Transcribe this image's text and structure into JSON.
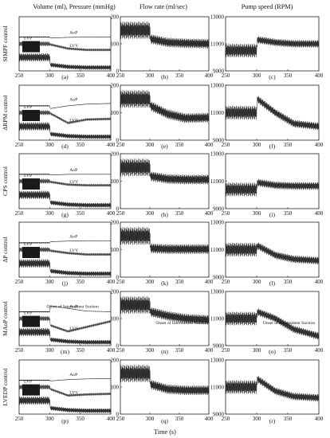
{
  "figure": {
    "column_titles": [
      "Volume (ml), Pressure (mmHg)",
      "Flow rate (ml/sec)",
      "Pump speed (RPM)"
    ],
    "row_titles": [
      "SIMPF control",
      "ΔRPM control",
      "CPS control",
      "ΔP control",
      "MAoP control",
      "LVEDP control"
    ],
    "xlabel": "Time (s)",
    "panel_labels": [
      "(a)",
      "(b)",
      "(c)",
      "(d)",
      "(e)",
      "(f)",
      "(g)",
      "(h)",
      "(i)",
      "(j)",
      "(k)",
      "(l)",
      "(m)",
      "(n)",
      "(o)",
      "(p)",
      "(q)",
      "(r)"
    ]
  },
  "chart_data": [
    {
      "type": "line",
      "panel": "(a)",
      "row": "SIMPF control",
      "x": [
        250,
        300,
        301,
        330,
        360,
        400
      ],
      "series": [
        {
          "name": "AoP",
          "values": [
            100,
            100,
            97,
            99,
            100,
            100
          ]
        },
        {
          "name": "LVV",
          "values": [
            80,
            80,
            78,
            66,
            62,
            62
          ]
        },
        {
          "name": "LVP",
          "values": [
            40,
            40,
            18,
            12,
            10,
            10
          ]
        }
      ],
      "xlim": [
        250,
        400
      ],
      "ylim": [
        0,
        160
      ],
      "annotations": [
        "AoP",
        "LVV",
        "LVP"
      ]
    },
    {
      "type": "line",
      "panel": "(b)",
      "row": "SIMPF control",
      "x": [
        250,
        300,
        301,
        330,
        360,
        400
      ],
      "series": [
        {
          "values": [
            150,
            150,
            118,
            105,
            102,
            100
          ]
        }
      ],
      "xlim": [
        250,
        400
      ],
      "ylim": [
        0,
        200
      ],
      "yticks": [
        0,
        100,
        200
      ]
    },
    {
      "type": "line",
      "panel": "(c)",
      "row": "SIMPF control",
      "x": [
        250,
        300,
        301,
        330,
        360,
        400
      ],
      "series": [
        {
          "values": [
            10500,
            10500,
            11300,
            11100,
            11000,
            11000
          ]
        }
      ],
      "xlim": [
        250,
        400
      ],
      "ylim": [
        9000,
        13000
      ],
      "yticks": [
        9000,
        11000,
        13000
      ]
    },
    {
      "type": "line",
      "panel": "(d)",
      "row": "ΔRPM control",
      "x": [
        250,
        300,
        301,
        330,
        360,
        400
      ],
      "series": [
        {
          "name": "AoP",
          "values": [
            100,
            100,
            92,
            100,
            105,
            107
          ]
        },
        {
          "name": "LVV",
          "values": [
            80,
            80,
            78,
            50,
            60,
            62
          ]
        },
        {
          "name": "LVP",
          "values": [
            40,
            40,
            18,
            12,
            10,
            10
          ]
        }
      ],
      "xlim": [
        250,
        400
      ],
      "ylim": [
        0,
        160
      ],
      "annotations": [
        "AoP",
        "LVV",
        "LVP"
      ]
    },
    {
      "type": "line",
      "panel": "(e)",
      "row": "ΔRPM control",
      "x": [
        250,
        300,
        301,
        330,
        360,
        400
      ],
      "series": [
        {
          "values": [
            150,
            150,
            125,
            95,
            80,
            82
          ]
        }
      ],
      "xlim": [
        250,
        400
      ],
      "ylim": [
        0,
        200
      ],
      "yticks": [
        0,
        100,
        200
      ]
    },
    {
      "type": "line",
      "panel": "(f)",
      "row": "ΔRPM control",
      "x": [
        250,
        300,
        301,
        330,
        360,
        400
      ],
      "series": [
        {
          "values": [
            11000,
            11000,
            12000,
            11000,
            10200,
            10000
          ]
        }
      ],
      "xlim": [
        250,
        400
      ],
      "ylim": [
        9000,
        13000
      ],
      "yticks": [
        9000,
        11000,
        13000
      ]
    },
    {
      "type": "line",
      "panel": "(g)",
      "row": "CPS control",
      "x": [
        250,
        300,
        301,
        330,
        360,
        400
      ],
      "series": [
        {
          "name": "AoP",
          "values": [
            100,
            100,
            98,
            100,
            100,
            100
          ]
        },
        {
          "name": "LVV",
          "values": [
            80,
            80,
            78,
            70,
            68,
            68
          ]
        },
        {
          "name": "LVP",
          "values": [
            40,
            40,
            18,
            12,
            10,
            10
          ]
        }
      ],
      "xlim": [
        250,
        400
      ],
      "ylim": [
        0,
        160
      ],
      "annotations": [
        "AoP",
        "LVV",
        "LVP"
      ]
    },
    {
      "type": "line",
      "panel": "(h)",
      "row": "CPS control",
      "x": [
        250,
        300,
        301,
        330,
        360,
        400
      ],
      "series": [
        {
          "values": [
            150,
            150,
            118,
            108,
            106,
            106
          ]
        }
      ],
      "xlim": [
        250,
        400
      ],
      "ylim": [
        0,
        200
      ],
      "yticks": [
        0,
        100,
        200
      ]
    },
    {
      "type": "line",
      "panel": "(i)",
      "row": "CPS control",
      "x": [
        250,
        300,
        301,
        330,
        360,
        400
      ],
      "series": [
        {
          "values": [
            10400,
            10400,
            10900,
            10700,
            10650,
            10650
          ]
        }
      ],
      "xlim": [
        250,
        400
      ],
      "ylim": [
        9000,
        13000
      ],
      "yticks": [
        9000,
        11000,
        13000
      ]
    },
    {
      "type": "line",
      "panel": "(j)",
      "row": "ΔP control",
      "x": [
        250,
        300,
        301,
        330,
        360,
        400
      ],
      "series": [
        {
          "name": "AoP",
          "values": [
            100,
            100,
            103,
            105,
            106,
            106
          ]
        },
        {
          "name": "LVV",
          "values": [
            80,
            80,
            77,
            70,
            66,
            66
          ]
        },
        {
          "name": "LVP",
          "values": [
            40,
            40,
            18,
            12,
            10,
            10
          ]
        }
      ],
      "xlim": [
        250,
        400
      ],
      "ylim": [
        0,
        160
      ],
      "annotations": [
        "AoP",
        "LVV",
        "LVP"
      ]
    },
    {
      "type": "line",
      "panel": "(k)",
      "row": "ΔP control",
      "x": [
        250,
        300,
        301,
        330,
        360,
        400
      ],
      "series": [
        {
          "values": [
            150,
            150,
            105,
            102,
            102,
            102
          ]
        }
      ],
      "xlim": [
        250,
        400
      ],
      "ylim": [
        0,
        200
      ],
      "yticks": [
        0,
        100,
        200
      ]
    },
    {
      "type": "line",
      "panel": "(l)",
      "row": "ΔP control",
      "x": [
        250,
        300,
        301,
        330,
        360,
        400
      ],
      "series": [
        {
          "values": [
            11000,
            11000,
            11300,
            10600,
            10300,
            10200
          ]
        }
      ],
      "xlim": [
        250,
        400
      ],
      "ylim": [
        9000,
        13000
      ],
      "yticks": [
        9000,
        11000,
        13000
      ]
    },
    {
      "type": "line",
      "panel": "(m)",
      "row": "MAoP control",
      "x": [
        250,
        300,
        301,
        330,
        360,
        400
      ],
      "series": [
        {
          "name": "AoP",
          "values": [
            100,
            100,
            118,
            110,
            102,
            100
          ]
        },
        {
          "name": "LVV",
          "values": [
            80,
            80,
            60,
            42,
            55,
            72
          ]
        },
        {
          "name": "LVP",
          "values": [
            40,
            40,
            18,
            12,
            10,
            10
          ]
        }
      ],
      "xlim": [
        250,
        400
      ],
      "ylim": [
        0,
        160
      ],
      "annotations": [
        "AoP",
        "LVP",
        "LVV",
        "Onset of Intermittent Suction"
      ]
    },
    {
      "type": "line",
      "panel": "(n)",
      "row": "MAoP control",
      "x": [
        250,
        300,
        301,
        330,
        360,
        400
      ],
      "series": [
        {
          "values": [
            150,
            150,
            125,
            110,
            100,
            95
          ]
        }
      ],
      "xlim": [
        250,
        400
      ],
      "ylim": [
        0,
        200
      ],
      "yticks": [
        0,
        100,
        200
      ],
      "annotations": [
        "Onset of Intermittent Suction"
      ]
    },
    {
      "type": "line",
      "panel": "(o)",
      "row": "MAoP control",
      "x": [
        250,
        300,
        301,
        330,
        360,
        400
      ],
      "series": [
        {
          "values": [
            11000,
            11000,
            11500,
            11000,
            10200,
            9700
          ]
        }
      ],
      "xlim": [
        250,
        400
      ],
      "ylim": [
        9000,
        13000
      ],
      "yticks": [
        9000,
        11000,
        13000
      ],
      "annotations": [
        "Onset of Intermittent Suction"
      ]
    },
    {
      "type": "line",
      "panel": "(p)",
      "row": "LVEDP control",
      "x": [
        250,
        300,
        301,
        330,
        360,
        400
      ],
      "series": [
        {
          "name": "AoP",
          "values": [
            100,
            100,
            98,
            102,
            104,
            105
          ]
        },
        {
          "name": "LVV",
          "values": [
            80,
            80,
            74,
            55,
            58,
            60
          ]
        },
        {
          "name": "LVP",
          "values": [
            40,
            40,
            18,
            12,
            10,
            10
          ]
        }
      ],
      "xlim": [
        250,
        400
      ],
      "ylim": [
        0,
        160
      ],
      "annotations": [
        "AoP",
        "LVV",
        "LVP"
      ]
    },
    {
      "type": "line",
      "panel": "(q)",
      "row": "LVEDP control",
      "x": [
        250,
        300,
        301,
        330,
        360,
        400
      ],
      "series": [
        {
          "values": [
            150,
            150,
            110,
            92,
            88,
            88
          ]
        }
      ],
      "xlim": [
        250,
        400
      ],
      "ylim": [
        0,
        200
      ],
      "yticks": [
        0,
        100,
        200
      ]
    },
    {
      "type": "line",
      "panel": "(r)",
      "row": "LVEDP control",
      "x": [
        250,
        300,
        301,
        330,
        360,
        400
      ],
      "series": [
        {
          "values": [
            11000,
            11000,
            11600,
            10700,
            10300,
            10200
          ]
        }
      ],
      "xlim": [
        250,
        400
      ],
      "ylim": [
        9000,
        13000
      ],
      "yticks": [
        9000,
        11000,
        13000
      ]
    }
  ],
  "axis": {
    "xticks": [
      250,
      300,
      350,
      400
    ],
    "xlim": [
      250,
      400
    ]
  }
}
